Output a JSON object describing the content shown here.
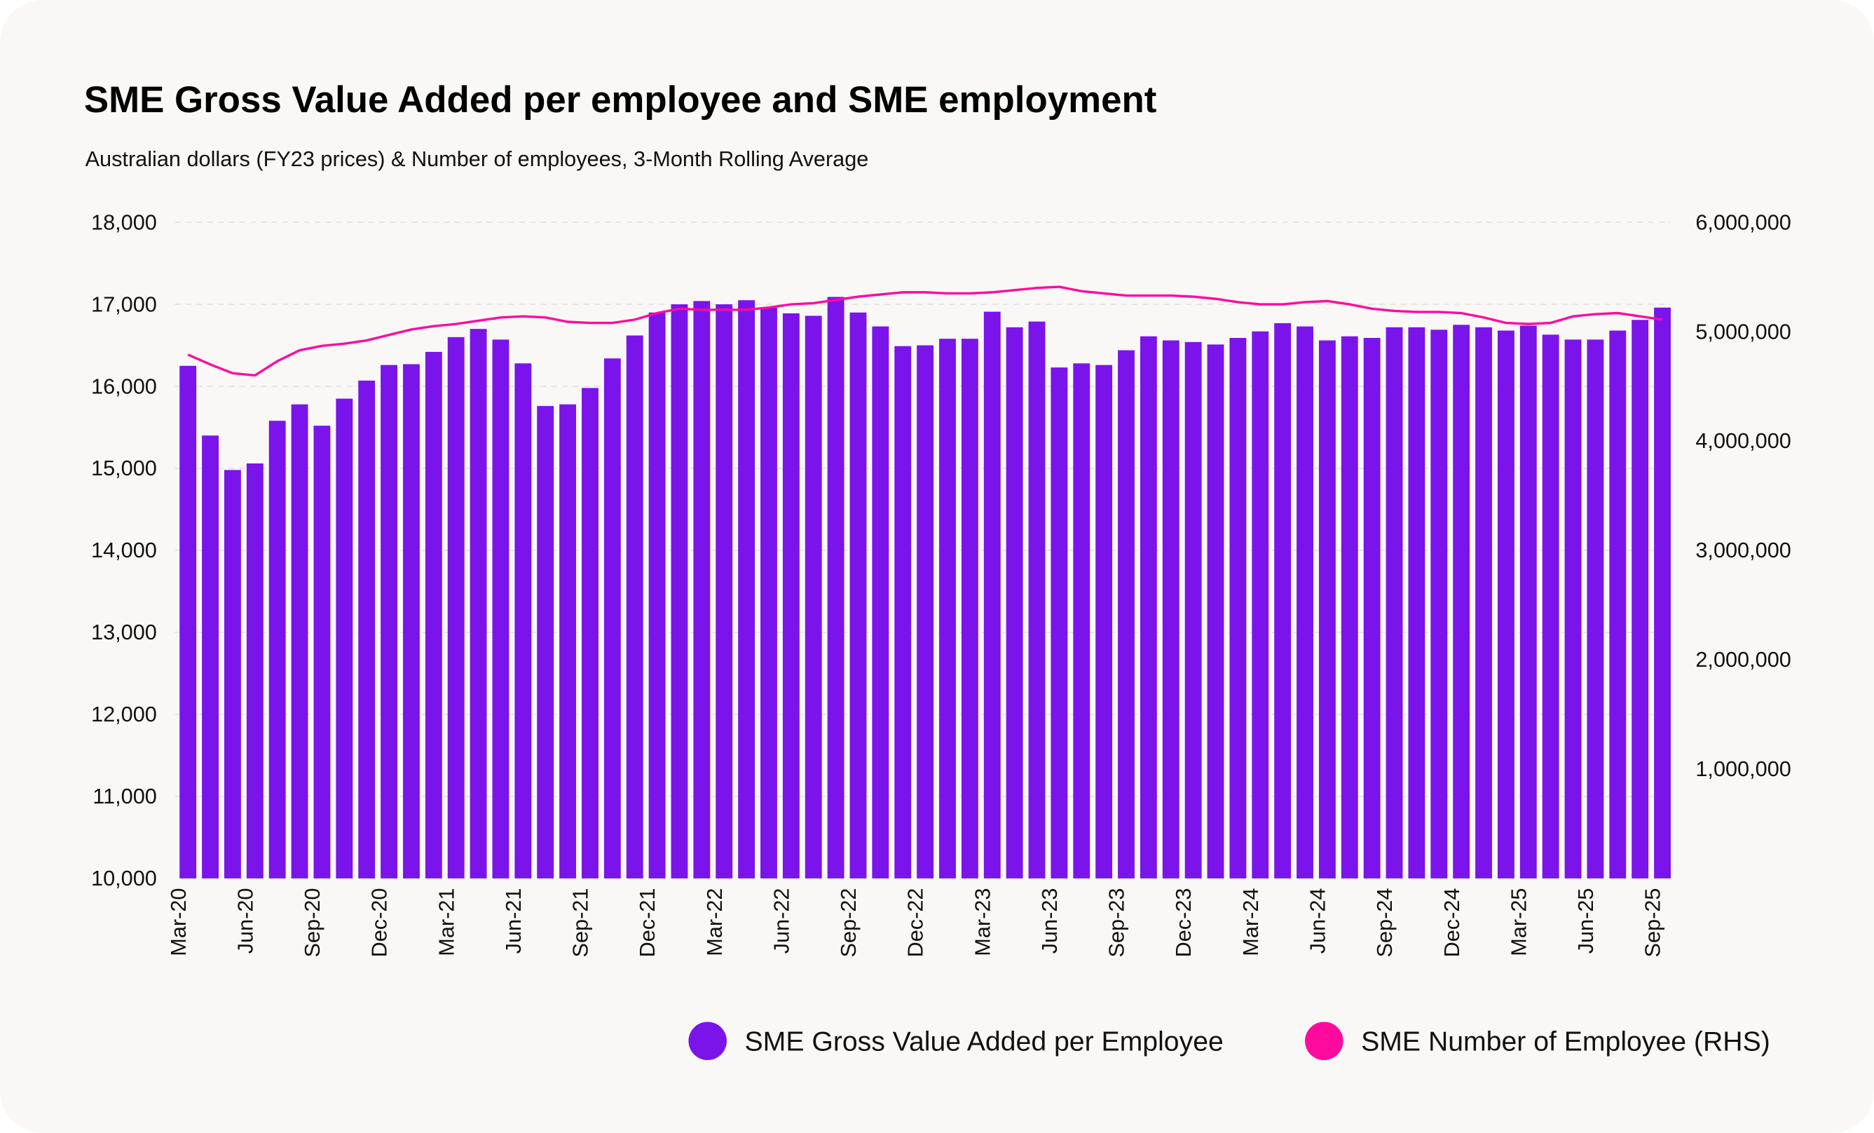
{
  "chart_data": {
    "type": "bar+line",
    "title": "SME Gross Value Added per employee and SME employment",
    "subtitle": "Australian dollars (FY23 prices) & Number of employees, 3-Month Rolling Average",
    "x": [
      "Mar-20",
      "Apr-20",
      "May-20",
      "Jun-20",
      "Jul-20",
      "Aug-20",
      "Sep-20",
      "Oct-20",
      "Nov-20",
      "Dec-20",
      "Jan-21",
      "Feb-21",
      "Mar-21",
      "Apr-21",
      "May-21",
      "Jun-21",
      "Jul-21",
      "Aug-21",
      "Sep-21",
      "Oct-21",
      "Nov-21",
      "Dec-21",
      "Jan-22",
      "Feb-22",
      "Mar-22",
      "Apr-22",
      "May-22",
      "Jun-22",
      "Jul-22",
      "Aug-22",
      "Sep-22",
      "Oct-22",
      "Nov-22",
      "Dec-22",
      "Jan-23",
      "Feb-23",
      "Mar-23",
      "Apr-23",
      "May-23",
      "Jun-23",
      "Jul-23",
      "Aug-23",
      "Sep-23",
      "Oct-23",
      "Nov-23",
      "Dec-23",
      "Jan-24",
      "Feb-24",
      "Mar-24",
      "Apr-24",
      "May-24",
      "Jun-24",
      "Jul-24",
      "Aug-24",
      "Sep-24",
      "Oct-24",
      "Nov-24",
      "Dec-24",
      "Jan-25",
      "Feb-25",
      "Mar-25",
      "Apr-25",
      "May-25",
      "Jun-25",
      "Jul-25",
      "Aug-25",
      "Sep-25"
    ],
    "x_tick_labels": [
      "Mar-20",
      "Jun-20",
      "Sep-20",
      "Dec-20",
      "Mar-21",
      "Jun-21",
      "Sep-21",
      "Dec-21",
      "Mar-22",
      "Jun-22",
      "Sep-22",
      "Dec-22",
      "Mar-23",
      "Jun-23",
      "Sep-23",
      "Dec-23",
      "Mar-24",
      "Jun-24",
      "Sep-24",
      "Dec-24",
      "Mar-25",
      "Jun-25",
      "Sep-25"
    ],
    "y_left": {
      "ylim": [
        10000,
        18000
      ],
      "ticks": [
        "10,000",
        "11,000",
        "12,000",
        "13,000",
        "14,000",
        "15,000",
        "16,000",
        "17,000",
        "18,000"
      ]
    },
    "y_right": {
      "ylim": [
        0,
        6000000
      ],
      "ticks": [
        "1,000,000",
        "2,000,000",
        "3,000,000",
        "4,000,000",
        "5,000,000",
        "6,000,000"
      ]
    },
    "grid": "horizontal dashed",
    "legend_placement": "bottom-right",
    "series": [
      {
        "name": "SME Gross Value Added per Employee",
        "type": "bar",
        "axis": "left",
        "color": "#7a14eb",
        "values": [
          16250,
          15400,
          14980,
          15060,
          15580,
          15780,
          15520,
          15850,
          16070,
          16260,
          16270,
          16420,
          16600,
          16700,
          16570,
          16280,
          15760,
          15780,
          15980,
          16340,
          16620,
          16900,
          17000,
          17040,
          17000,
          17050,
          16960,
          16890,
          16860,
          17090,
          16900,
          16730,
          16490,
          16500,
          16580,
          16580,
          16910,
          16720,
          16790,
          16230,
          16280,
          16260,
          16440,
          16610,
          16560,
          16540,
          16510,
          16590,
          16670,
          16770,
          16730,
          16560,
          16610,
          16590,
          16720,
          16720,
          16690,
          16750,
          16720,
          16680,
          16740,
          16630,
          16570,
          16570,
          16680,
          16810,
          16960
        ]
      },
      {
        "name": "SME Number of Employee (RHS)",
        "type": "line",
        "axis": "right",
        "color": "#ff0a9e",
        "values": [
          4790000,
          4700000,
          4620000,
          4600000,
          4730000,
          4830000,
          4870000,
          4890000,
          4920000,
          4970000,
          5020000,
          5050000,
          5070000,
          5100000,
          5130000,
          5140000,
          5130000,
          5090000,
          5080000,
          5080000,
          5110000,
          5170000,
          5210000,
          5200000,
          5200000,
          5200000,
          5220000,
          5250000,
          5260000,
          5290000,
          5320000,
          5340000,
          5360000,
          5360000,
          5350000,
          5350000,
          5360000,
          5380000,
          5400000,
          5410000,
          5370000,
          5350000,
          5330000,
          5330000,
          5330000,
          5320000,
          5300000,
          5270000,
          5250000,
          5250000,
          5270000,
          5280000,
          5250000,
          5210000,
          5190000,
          5180000,
          5180000,
          5170000,
          5130000,
          5080000,
          5070000,
          5080000,
          5140000,
          5160000,
          5170000,
          5140000,
          5110000
        ]
      }
    ]
  }
}
